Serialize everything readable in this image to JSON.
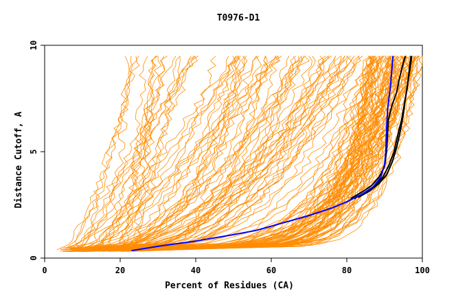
{
  "chart_data": {
    "type": "line",
    "title": "T0976-D1",
    "xlabel": "Percent of Residues (CA)",
    "ylabel": "Distance Cutoff, A",
    "xlim": [
      0,
      100
    ],
    "ylim": [
      0,
      10
    ],
    "xticks": [
      "0",
      "20",
      "40",
      "60",
      "80",
      "100"
    ],
    "yticks": [
      "0",
      "5",
      "10"
    ],
    "grid": false,
    "colors": {
      "background_curves": "#ff8c00",
      "highlight_blue": "#0000ff",
      "highlight_black": "#000000"
    },
    "series": [
      {
        "color": "#0000ff",
        "points": [
          [
            23,
            0.35
          ],
          [
            30,
            0.55
          ],
          [
            40,
            0.8
          ],
          [
            50,
            1.1
          ],
          [
            56,
            1.3
          ],
          [
            62,
            1.6
          ],
          [
            70,
            2.0
          ],
          [
            76,
            2.35
          ],
          [
            80,
            2.65
          ],
          [
            84,
            3.0
          ],
          [
            87,
            3.35
          ],
          [
            89,
            3.8
          ],
          [
            90,
            4.4
          ],
          [
            90.3,
            5.0
          ],
          [
            90.5,
            6.0
          ],
          [
            90.8,
            7.0
          ],
          [
            91.5,
            8.0
          ],
          [
            92,
            9.0
          ],
          [
            92.2,
            9.5
          ]
        ]
      },
      {
        "color": "#000000",
        "points": [
          [
            81,
            2.8
          ],
          [
            84,
            3.1
          ],
          [
            86.5,
            3.4
          ],
          [
            88.5,
            3.8
          ],
          [
            90,
            4.3
          ],
          [
            90.5,
            5.0
          ],
          [
            90.8,
            5.8
          ],
          [
            91.0,
            6.5
          ],
          [
            92,
            7.2
          ],
          [
            93.2,
            7.8
          ],
          [
            94.0,
            8.5
          ],
          [
            95.0,
            9.2
          ],
          [
            95.5,
            9.5
          ]
        ]
      },
      {
        "color": "#000000",
        "points": [
          [
            82,
            2.8
          ],
          [
            85,
            3.1
          ],
          [
            87.5,
            3.4
          ],
          [
            89.5,
            3.8
          ],
          [
            91,
            4.3
          ],
          [
            92.5,
            5.0
          ],
          [
            93.5,
            5.8
          ],
          [
            94.5,
            6.5
          ],
          [
            95.2,
            7.2
          ],
          [
            96.0,
            8.0
          ],
          [
            96.5,
            8.8
          ],
          [
            97.0,
            9.5
          ]
        ]
      },
      {
        "color": "#000000",
        "points": [
          [
            83,
            2.85
          ],
          [
            86,
            3.15
          ],
          [
            88.5,
            3.5
          ],
          [
            90.5,
            3.9
          ],
          [
            92,
            4.5
          ],
          [
            93.2,
            5.2
          ],
          [
            94.2,
            6.0
          ],
          [
            95.0,
            6.8
          ],
          [
            95.5,
            7.5
          ],
          [
            96.2,
            8.3
          ],
          [
            96.8,
            9.0
          ],
          [
            97.2,
            9.5
          ]
        ]
      }
    ]
  }
}
